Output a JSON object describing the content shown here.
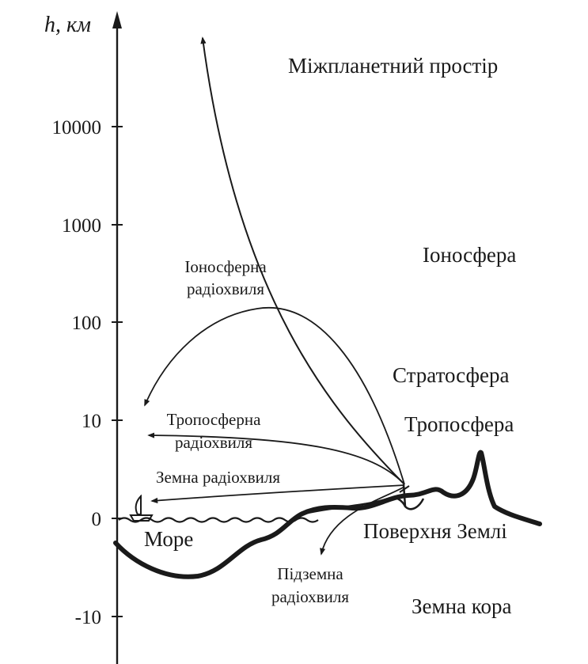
{
  "axis": {
    "title": "h, км",
    "ticks": [
      "10000",
      "1000",
      "100",
      "10",
      "0",
      "-10"
    ]
  },
  "layers": {
    "interplanetary": "Міжпланетний простір",
    "ionosphere": "Іоносфера",
    "stratosphere": "Стратосфера",
    "troposphere": "Тропосфера",
    "earth_surface": "Поверхня Землі",
    "earth_crust": "Земна кора",
    "sea": "Море"
  },
  "waves": {
    "ionospheric": [
      "Іоносферна",
      "радіохвиля"
    ],
    "tropospheric": [
      "Тропосферна",
      "радіохвиля"
    ],
    "ground": "Земна радіохвиля",
    "underground": [
      "Підземна",
      "радіохвиля"
    ]
  },
  "colors": {
    "ink": "#1a1a1a",
    "background": "#ffffff"
  }
}
